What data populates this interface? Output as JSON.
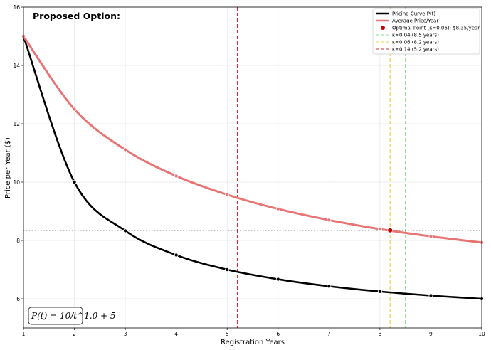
{
  "chart_data": {
    "type": "line",
    "title": "Proposed Option:",
    "xlabel": "Registration Years",
    "ylabel": "Price per Year ($)",
    "xlim": [
      1,
      10
    ],
    "ylim": [
      5,
      16
    ],
    "xticks": [
      1,
      2,
      3,
      4,
      5,
      6,
      7,
      8,
      9,
      10
    ],
    "yticks": [
      6,
      8,
      10,
      12,
      14,
      16
    ],
    "grid": true,
    "legend_position": "top-right",
    "formula": "P(t) = 10/t^1.0 + 5",
    "series": [
      {
        "name": "Pricing Curve P(t)",
        "color": "#000000",
        "x": [
          1,
          2,
          3,
          4,
          5,
          6,
          7,
          8,
          9,
          10
        ],
        "y": [
          15.0,
          10.0,
          8.33,
          7.5,
          7.0,
          6.67,
          6.43,
          6.25,
          6.11,
          6.0
        ]
      },
      {
        "name": "Average Price/Year",
        "color": "#e87474",
        "x": [
          1,
          2,
          3,
          4,
          5,
          6,
          7,
          8,
          9,
          10
        ],
        "y": [
          15.0,
          12.5,
          11.11,
          10.21,
          9.57,
          9.08,
          8.7,
          8.39,
          8.14,
          7.93
        ]
      }
    ],
    "optimal_point": {
      "label": "Optimal Point (κ=0.06): $8.35/year",
      "x": 8.2,
      "y": 8.35,
      "color": "#cc0000"
    },
    "vertical_lines": [
      {
        "label": "κ=0.04 (8.5 years)",
        "x": 8.5,
        "color": "#90dd90"
      },
      {
        "label": "κ=0.06 (8.2 years)",
        "x": 8.2,
        "color": "#e8d44d"
      },
      {
        "label": "κ=0.14 (5.2 years)",
        "x": 5.2,
        "color": "#d43030"
      }
    ],
    "horizontal_line": {
      "y": 8.35,
      "color": "#000000"
    }
  }
}
